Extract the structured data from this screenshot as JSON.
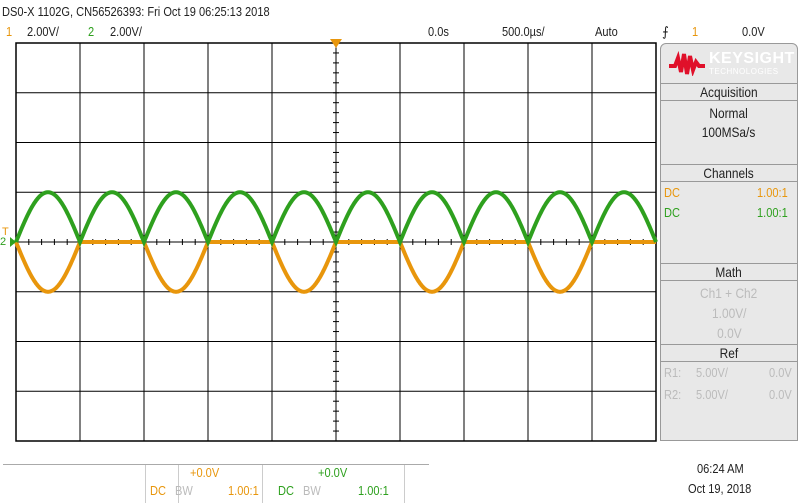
{
  "header": {
    "title": "DS0-X 1102G, CN56526393: Fri Oct 19 06:25:13 2018",
    "ch1": {
      "num": "1",
      "scale": "2.00V/"
    },
    "ch2": {
      "num": "2",
      "scale": "2.00V/"
    },
    "time_offset": "0.0s",
    "time_scale": "500.0µs/",
    "trigger_mode": "Auto",
    "trigger_source": "1",
    "trigger_level": "0.0V",
    "trigger_icon": "rising-edge-icon"
  },
  "logo": {
    "brand": "KEYSIGHT",
    "sub": "TECHNOLOGIES"
  },
  "panel": {
    "acquisition": {
      "title": "Acquisition",
      "mode": "Normal",
      "rate": "100MSa/s"
    },
    "channels": {
      "title": "Channels",
      "rows": [
        {
          "coupling": "DC",
          "probe": "1.00:1"
        },
        {
          "coupling": "DC",
          "probe": "1.00:1"
        }
      ]
    },
    "math": {
      "title": "Math",
      "expr": "Ch1 + Ch2",
      "scale": "1.00V/",
      "offset": "0.0V"
    },
    "ref": {
      "title": "Ref",
      "rows": [
        {
          "name": "R1:",
          "scale": "5.00V/",
          "offset": "0.0V"
        },
        {
          "name": "R2:",
          "scale": "5.00V/",
          "offset": "0.0V"
        }
      ]
    }
  },
  "footer": {
    "ch1": {
      "offset": "+0.0V",
      "coupling": "DC",
      "bw": "BW",
      "probe": "1.00:1"
    },
    "ch2": {
      "offset": "+0.0V",
      "coupling": "DC",
      "bw": "BW",
      "probe": "1.00:1"
    },
    "time": "06:24 AM",
    "date": "Oct 19, 2018"
  },
  "markers": {
    "trigger": "T",
    "ch2": "2"
  },
  "colors": {
    "ch1": "#e8960c",
    "ch2": "#2ea01e",
    "logo": "#e0102a"
  },
  "chart_data": {
    "type": "line",
    "xlabel": "",
    "ylabel": "",
    "xlim_ms": [
      -2.5,
      2.5
    ],
    "ylim_V": [
      -8,
      8
    ],
    "grid": true,
    "series": [
      {
        "channel": "1",
        "description_freq_hz": 1000,
        "amplitude_V": 2.0,
        "shape": "negative half-wave sine (0 V during positive half)"
      },
      {
        "channel": "2",
        "description_freq_hz": 1000,
        "amplitude_V": 2.0,
        "shape": "full-wave rectified sine (|sin|)"
      }
    ]
  }
}
